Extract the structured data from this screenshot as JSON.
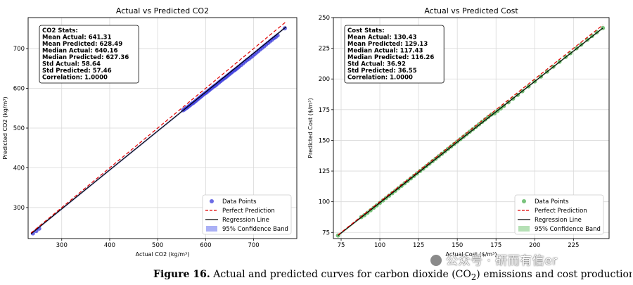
{
  "figure": {
    "caption_label": "Figure 16.",
    "caption_text": "Actual and predicted curves for carbon dioxide (CO",
    "caption_sub": "2",
    "caption_text2": ") emissions and cost production of",
    "watermark": "公众号 · 研而有信er"
  },
  "chart_data": [
    {
      "type": "scatter",
      "title": "Actual vs Predicted CO2",
      "xlabel": "Actual CO2 (kg/m³)",
      "ylabel": "Predicted CO2 (kg/m³)",
      "xlim": [
        230,
        790
      ],
      "ylim": [
        222,
        778
      ],
      "xticks": [
        300,
        400,
        500,
        600,
        700
      ],
      "yticks": [
        300,
        400,
        500,
        600,
        700
      ],
      "grid": true,
      "point_color": "#3b3bdc",
      "band_color": "#aab0f5",
      "stats": [
        "CO2 Stats:",
        "Mean Actual: 641.31",
        "Mean Predicted: 628.49",
        "Median Actual: 640.16",
        "Median Predicted: 627.36",
        "Std Actual: 58.64",
        "Std Predicted: 57.46",
        "Correlation: 1.0000"
      ],
      "legend_position": "bottom-right",
      "legend": [
        "Data Points",
        "Perfect Prediction",
        "Regression Line",
        "95% Confidence Band"
      ],
      "perfect_line": [
        [
          236,
          236
        ],
        [
          768,
          768
        ]
      ],
      "regression_line": [
        [
          236,
          234
        ],
        [
          768,
          755
        ]
      ],
      "points": [
        [
          240,
          235
        ],
        [
          247,
          241
        ],
        [
          253,
          247
        ],
        [
          553,
          545
        ],
        [
          556,
          547
        ],
        [
          559,
          550
        ],
        [
          562,
          552
        ],
        [
          565,
          555
        ],
        [
          568,
          558
        ],
        [
          571,
          561
        ],
        [
          574,
          563
        ],
        [
          577,
          566
        ],
        [
          580,
          569
        ],
        [
          583,
          572
        ],
        [
          586,
          575
        ],
        [
          589,
          578
        ],
        [
          592,
          581
        ],
        [
          595,
          584
        ],
        [
          598,
          587
        ],
        [
          601,
          589
        ],
        [
          604,
          592
        ],
        [
          607,
          595
        ],
        [
          610,
          598
        ],
        [
          613,
          601
        ],
        [
          616,
          604
        ],
        [
          619,
          606
        ],
        [
          622,
          609
        ],
        [
          625,
          612
        ],
        [
          628,
          615
        ],
        [
          631,
          618
        ],
        [
          634,
          621
        ],
        [
          637,
          624
        ],
        [
          640,
          626
        ],
        [
          643,
          629
        ],
        [
          646,
          632
        ],
        [
          649,
          635
        ],
        [
          652,
          638
        ],
        [
          655,
          641
        ],
        [
          658,
          644
        ],
        [
          661,
          646
        ],
        [
          664,
          649
        ],
        [
          667,
          652
        ],
        [
          670,
          655
        ],
        [
          674,
          659
        ],
        [
          678,
          663
        ],
        [
          682,
          667
        ],
        [
          686,
          671
        ],
        [
          690,
          674
        ],
        [
          694,
          678
        ],
        [
          698,
          682
        ],
        [
          702,
          686
        ],
        [
          706,
          690
        ],
        [
          710,
          694
        ],
        [
          714,
          698
        ],
        [
          718,
          702
        ],
        [
          722,
          706
        ],
        [
          726,
          710
        ],
        [
          730,
          714
        ],
        [
          734,
          718
        ],
        [
          738,
          722
        ],
        [
          742,
          726
        ],
        [
          746,
          729
        ],
        [
          750,
          733
        ],
        [
          765,
          751
        ]
      ]
    },
    {
      "type": "scatter",
      "title": "Actual vs Predicted Cost",
      "xlabel": "Actual Cost ($/m³)",
      "ylabel": "Predicted Cost ($/m³)",
      "xlim": [
        70,
        248
      ],
      "ylim": [
        70,
        250
      ],
      "xticks": [
        75,
        100,
        125,
        150,
        175,
        200,
        225
      ],
      "yticks": [
        75,
        100,
        125,
        150,
        175,
        200,
        225,
        250
      ],
      "grid": true,
      "point_color": "#4caf50",
      "band_color": "#b5e0b5",
      "stats": [
        "Cost Stats:",
        "Mean Actual: 130.43",
        "Mean Predicted: 129.13",
        "Median Actual: 117.43",
        "Median Predicted: 116.26",
        "Std Actual: 36.92",
        "Std Predicted: 36.55",
        "Correlation: 1.0000"
      ],
      "legend_position": "bottom-right",
      "legend": [
        "Data Points",
        "Perfect Prediction",
        "Regression Line",
        "95% Confidence Band"
      ],
      "perfect_line": [
        [
          73,
          73
        ],
        [
          244,
          244
        ]
      ],
      "regression_line": [
        [
          73,
          72.5
        ],
        [
          244,
          241.5
        ]
      ],
      "points": [
        [
          73,
          72.5
        ],
        [
          88,
          87.5
        ],
        [
          90,
          89
        ],
        [
          92,
          91
        ],
        [
          94,
          93
        ],
        [
          96,
          95
        ],
        [
          98,
          97
        ],
        [
          100,
          99
        ],
        [
          102,
          101
        ],
        [
          104,
          103
        ],
        [
          106,
          105
        ],
        [
          108,
          107
        ],
        [
          110,
          109
        ],
        [
          112,
          111
        ],
        [
          114,
          113
        ],
        [
          116,
          115
        ],
        [
          118,
          117
        ],
        [
          120,
          119
        ],
        [
          122,
          121
        ],
        [
          124,
          123
        ],
        [
          126,
          125
        ],
        [
          128,
          127
        ],
        [
          130,
          129
        ],
        [
          132,
          131
        ],
        [
          134,
          133
        ],
        [
          136,
          135
        ],
        [
          138,
          137
        ],
        [
          140,
          139
        ],
        [
          142,
          141
        ],
        [
          144,
          143
        ],
        [
          146,
          145
        ],
        [
          148,
          147
        ],
        [
          150,
          149
        ],
        [
          152,
          151
        ],
        [
          154,
          153
        ],
        [
          156,
          155
        ],
        [
          158,
          157
        ],
        [
          160,
          159
        ],
        [
          162,
          161
        ],
        [
          164,
          163
        ],
        [
          166,
          165
        ],
        [
          168,
          167
        ],
        [
          170,
          169
        ],
        [
          172,
          171
        ],
        [
          174,
          172
        ],
        [
          176,
          174
        ],
        [
          178,
          176
        ],
        [
          180,
          178
        ],
        [
          183,
          181
        ],
        [
          186,
          184
        ],
        [
          189,
          187
        ],
        [
          192,
          190
        ],
        [
          196,
          194
        ],
        [
          200,
          198
        ],
        [
          204,
          202
        ],
        [
          208,
          206
        ],
        [
          212,
          210
        ],
        [
          216,
          214
        ],
        [
          220,
          218
        ],
        [
          223,
          221
        ],
        [
          227,
          225
        ],
        [
          230,
          228
        ],
        [
          234,
          232
        ],
        [
          237,
          235
        ],
        [
          240,
          238
        ],
        [
          244,
          241.5
        ]
      ]
    }
  ]
}
